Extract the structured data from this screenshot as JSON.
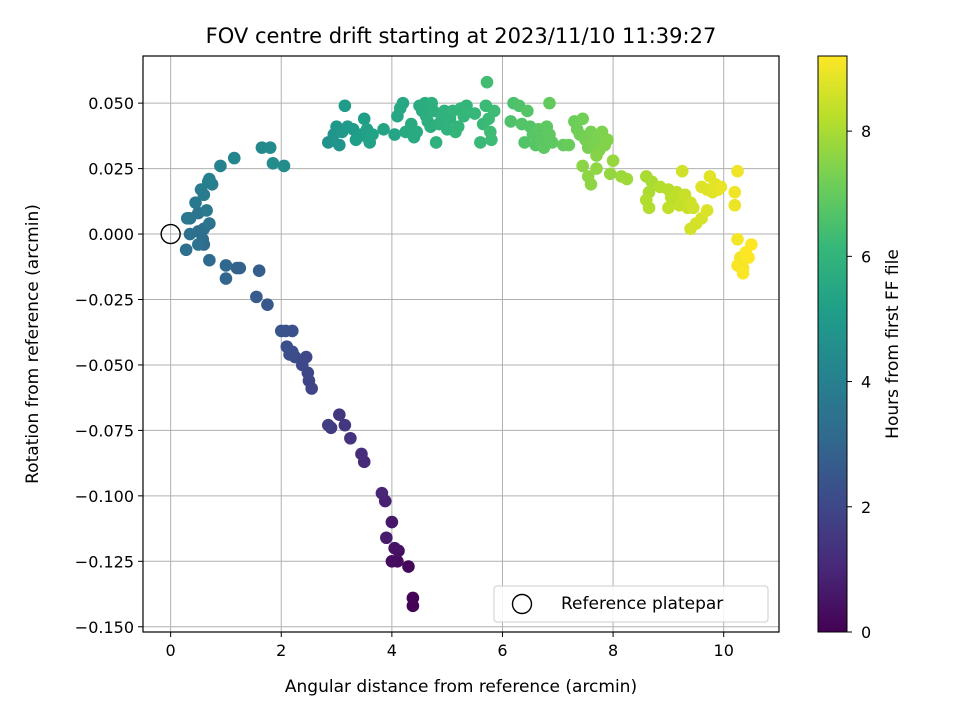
{
  "chart_data": {
    "type": "scatter",
    "title": "FOV centre drift starting at 2023/11/10 11:39:27",
    "xlabel": "Angular distance from reference (arcmin)",
    "ylabel": "Rotation from reference (arcmin)",
    "xlim": [
      -0.5,
      11.0
    ],
    "ylim": [
      -0.152,
      0.068
    ],
    "xticks": [
      0,
      2,
      4,
      6,
      8,
      10
    ],
    "xtick_labels": [
      "0",
      "2",
      "4",
      "6",
      "8",
      "10"
    ],
    "yticks": [
      -0.15,
      -0.125,
      -0.1,
      -0.075,
      -0.05,
      -0.025,
      0.0,
      0.025,
      0.05
    ],
    "ytick_labels": [
      "−0.150",
      "−0.125",
      "−0.100",
      "−0.075",
      "−0.050",
      "−0.025",
      "0.000",
      "0.025",
      "0.050"
    ],
    "grid": true,
    "legend": {
      "placement": "lower-right",
      "entries": [
        "Reference platepar"
      ]
    },
    "reference_point": {
      "name": "Reference platepar",
      "x": 0,
      "y": 0
    },
    "colorbar": {
      "label": "Hours from first FF file",
      "colormap": "viridis",
      "range": [
        0,
        9.2
      ],
      "ticks": [
        0,
        2,
        4,
        6,
        8
      ],
      "tick_labels": [
        "0",
        "2",
        "4",
        "6",
        "8"
      ]
    },
    "series": [
      {
        "values_format": "[x, y, hours]",
        "points": [
          [
            4.38,
            -0.142,
            0.05
          ],
          [
            4.38,
            -0.139,
            0.1
          ],
          [
            4.3,
            -0.127,
            0.2
          ],
          [
            4.1,
            -0.125,
            0.25
          ],
          [
            4.0,
            -0.125,
            0.3
          ],
          [
            4.12,
            -0.121,
            0.4
          ],
          [
            4.05,
            -0.12,
            0.45
          ],
          [
            4.0,
            -0.11,
            0.6
          ],
          [
            3.9,
            -0.116,
            0.7
          ],
          [
            3.88,
            -0.102,
            0.85
          ],
          [
            3.82,
            -0.099,
            0.95
          ],
          [
            3.5,
            -0.087,
            1.1
          ],
          [
            3.45,
            -0.084,
            1.2
          ],
          [
            3.25,
            -0.078,
            1.35
          ],
          [
            3.15,
            -0.073,
            1.45
          ],
          [
            3.05,
            -0.069,
            1.5
          ],
          [
            2.9,
            -0.074,
            1.6
          ],
          [
            2.85,
            -0.073,
            1.7
          ],
          [
            2.55,
            -0.059,
            1.85
          ],
          [
            2.5,
            -0.056,
            1.9
          ],
          [
            2.48,
            -0.053,
            1.95
          ],
          [
            2.45,
            -0.047,
            2.0
          ],
          [
            2.38,
            -0.05,
            2.05
          ],
          [
            2.25,
            -0.047,
            2.1
          ],
          [
            2.2,
            -0.045,
            2.15
          ],
          [
            2.15,
            -0.046,
            2.2
          ],
          [
            2.1,
            -0.043,
            2.25
          ],
          [
            2.2,
            -0.037,
            2.3
          ],
          [
            2.08,
            -0.037,
            2.35
          ],
          [
            2.0,
            -0.037,
            2.4
          ],
          [
            1.75,
            -0.027,
            2.55
          ],
          [
            1.55,
            -0.024,
            2.65
          ],
          [
            1.6,
            -0.014,
            2.75
          ],
          [
            1.2,
            -0.013,
            2.85
          ],
          [
            1.25,
            -0.013,
            2.9
          ],
          [
            1.0,
            -0.017,
            3.0
          ],
          [
            1.0,
            -0.012,
            3.05
          ],
          [
            0.7,
            -0.01,
            3.15
          ],
          [
            0.6,
            -0.004,
            3.2
          ],
          [
            0.58,
            -0.002,
            3.25
          ],
          [
            0.6,
            0.002,
            3.3
          ],
          [
            0.5,
            0.001,
            3.35
          ],
          [
            0.28,
            -0.006,
            3.35
          ],
          [
            0.35,
            0.0,
            3.4
          ],
          [
            0.5,
            -0.004,
            3.45
          ],
          [
            0.5,
            0.008,
            3.5
          ],
          [
            0.7,
            0.004,
            3.55
          ],
          [
            0.35,
            0.006,
            3.6
          ],
          [
            0.3,
            0.006,
            3.65
          ],
          [
            0.45,
            0.012,
            3.7
          ],
          [
            0.65,
            0.009,
            3.75
          ],
          [
            0.6,
            0.015,
            3.8
          ],
          [
            0.55,
            0.017,
            3.85
          ],
          [
            0.75,
            0.019,
            3.9
          ],
          [
            0.68,
            0.02,
            3.95
          ],
          [
            0.7,
            0.021,
            4.0
          ],
          [
            0.9,
            0.026,
            4.1
          ],
          [
            1.15,
            0.029,
            4.2
          ],
          [
            1.65,
            0.033,
            4.35
          ],
          [
            1.8,
            0.033,
            4.4
          ],
          [
            1.85,
            0.027,
            4.45
          ],
          [
            2.05,
            0.026,
            4.5
          ],
          [
            2.85,
            0.035,
            4.7
          ],
          [
            2.95,
            0.038,
            4.75
          ],
          [
            3.05,
            0.034,
            4.8
          ],
          [
            3.0,
            0.041,
            4.85
          ],
          [
            3.1,
            0.039,
            4.9
          ],
          [
            3.2,
            0.041,
            4.95
          ],
          [
            3.15,
            0.049,
            5.0
          ],
          [
            3.3,
            0.04,
            5.05
          ],
          [
            3.35,
            0.036,
            5.1
          ],
          [
            3.45,
            0.038,
            5.1
          ],
          [
            3.5,
            0.044,
            5.15
          ],
          [
            3.55,
            0.037,
            5.2
          ],
          [
            3.6,
            0.035,
            5.25
          ],
          [
            3.55,
            0.04,
            5.25
          ],
          [
            3.65,
            0.038,
            5.3
          ],
          [
            3.85,
            0.04,
            5.35
          ],
          [
            4.05,
            0.038,
            5.4
          ],
          [
            4.1,
            0.045,
            5.45
          ],
          [
            4.15,
            0.048,
            5.5
          ],
          [
            4.2,
            0.05,
            5.5
          ],
          [
            4.25,
            0.039,
            5.55
          ],
          [
            4.35,
            0.042,
            5.55
          ],
          [
            4.4,
            0.037,
            5.6
          ],
          [
            4.45,
            0.039,
            5.6
          ],
          [
            4.5,
            0.049,
            5.65
          ],
          [
            4.55,
            0.047,
            5.65
          ],
          [
            4.6,
            0.05,
            5.7
          ],
          [
            4.62,
            0.045,
            5.7
          ],
          [
            4.65,
            0.043,
            5.75
          ],
          [
            4.7,
            0.041,
            5.75
          ],
          [
            4.72,
            0.05,
            5.8
          ],
          [
            4.75,
            0.047,
            5.8
          ],
          [
            4.8,
            0.035,
            5.85
          ],
          [
            4.85,
            0.042,
            5.85
          ],
          [
            4.9,
            0.045,
            5.9
          ],
          [
            4.95,
            0.047,
            5.9
          ],
          [
            5.0,
            0.04,
            5.95
          ],
          [
            5.05,
            0.044,
            5.95
          ],
          [
            5.1,
            0.047,
            6.0
          ],
          [
            5.15,
            0.039,
            6.0
          ],
          [
            5.2,
            0.041,
            6.05
          ],
          [
            5.25,
            0.048,
            6.05
          ],
          [
            5.3,
            0.045,
            6.1
          ],
          [
            5.35,
            0.049,
            6.1
          ],
          [
            5.5,
            0.046,
            6.15
          ],
          [
            5.6,
            0.035,
            6.2
          ],
          [
            5.65,
            0.042,
            6.2
          ],
          [
            5.7,
            0.049,
            6.25
          ],
          [
            5.75,
            0.044,
            6.25
          ],
          [
            5.78,
            0.039,
            6.3
          ],
          [
            5.8,
            0.036,
            6.3
          ],
          [
            5.85,
            0.047,
            6.3
          ],
          [
            5.72,
            0.058,
            6.35
          ],
          [
            6.2,
            0.05,
            6.55
          ],
          [
            6.15,
            0.043,
            6.6
          ],
          [
            6.3,
            0.049,
            6.6
          ],
          [
            6.35,
            0.042,
            6.65
          ],
          [
            6.4,
            0.035,
            6.65
          ],
          [
            6.45,
            0.047,
            6.7
          ],
          [
            6.5,
            0.041,
            6.7
          ],
          [
            6.55,
            0.038,
            6.75
          ],
          [
            6.6,
            0.034,
            6.75
          ],
          [
            6.65,
            0.04,
            6.8
          ],
          [
            6.7,
            0.036,
            6.8
          ],
          [
            6.75,
            0.033,
            6.85
          ],
          [
            6.8,
            0.041,
            6.85
          ],
          [
            6.85,
            0.038,
            6.9
          ],
          [
            6.9,
            0.035,
            6.9
          ],
          [
            6.85,
            0.05,
            6.95
          ],
          [
            7.1,
            0.034,
            7.0
          ],
          [
            7.2,
            0.034,
            7.05
          ],
          [
            7.3,
            0.043,
            7.1
          ],
          [
            7.35,
            0.04,
            7.15
          ],
          [
            7.4,
            0.038,
            7.2
          ],
          [
            7.45,
            0.044,
            7.2
          ],
          [
            7.5,
            0.036,
            7.25
          ],
          [
            7.55,
            0.033,
            7.3
          ],
          [
            7.6,
            0.039,
            7.3
          ],
          [
            7.65,
            0.035,
            7.35
          ],
          [
            7.7,
            0.037,
            7.35
          ],
          [
            7.75,
            0.032,
            7.4
          ],
          [
            7.8,
            0.039,
            7.4
          ],
          [
            7.85,
            0.034,
            7.45
          ],
          [
            7.9,
            0.036,
            7.45
          ],
          [
            7.7,
            0.03,
            7.5
          ],
          [
            7.45,
            0.026,
            7.55
          ],
          [
            7.55,
            0.022,
            7.6
          ],
          [
            7.6,
            0.019,
            7.6
          ],
          [
            7.7,
            0.025,
            7.65
          ],
          [
            7.95,
            0.023,
            7.7
          ],
          [
            8.0,
            0.028,
            7.75
          ],
          [
            8.15,
            0.022,
            7.8
          ],
          [
            8.25,
            0.021,
            7.85
          ],
          [
            8.6,
            0.022,
            8.0
          ],
          [
            8.7,
            0.02,
            8.0
          ],
          [
            8.65,
            0.016,
            8.05
          ],
          [
            8.6,
            0.013,
            8.1
          ],
          [
            8.65,
            0.01,
            8.1
          ],
          [
            8.85,
            0.018,
            8.15
          ],
          [
            9.0,
            0.017,
            8.2
          ],
          [
            9.05,
            0.014,
            8.25
          ],
          [
            9.1,
            0.013,
            8.25
          ],
          [
            9.15,
            0.016,
            8.3
          ],
          [
            9.2,
            0.014,
            8.3
          ],
          [
            9.0,
            0.01,
            8.35
          ],
          [
            9.2,
            0.011,
            8.4
          ],
          [
            9.25,
            0.012,
            8.4
          ],
          [
            9.3,
            0.015,
            8.45
          ],
          [
            9.35,
            0.01,
            8.45
          ],
          [
            9.4,
            0.012,
            8.5
          ],
          [
            9.45,
            0.01,
            8.55
          ],
          [
            9.25,
            0.024,
            8.55
          ],
          [
            9.4,
            0.002,
            8.6
          ],
          [
            9.5,
            0.004,
            8.6
          ],
          [
            9.6,
            0.006,
            8.65
          ],
          [
            9.7,
            0.009,
            8.7
          ],
          [
            9.6,
            0.018,
            8.75
          ],
          [
            9.7,
            0.017,
            8.75
          ],
          [
            9.75,
            0.022,
            8.8
          ],
          [
            9.8,
            0.016,
            8.8
          ],
          [
            9.85,
            0.019,
            8.85
          ],
          [
            9.9,
            0.017,
            8.85
          ],
          [
            9.95,
            0.018,
            8.9
          ],
          [
            10.2,
            0.011,
            8.95
          ],
          [
            10.2,
            0.016,
            9.0
          ],
          [
            10.25,
            0.024,
            9.0
          ],
          [
            10.25,
            -0.002,
            9.05
          ],
          [
            10.3,
            -0.009,
            9.05
          ],
          [
            10.25,
            -0.012,
            9.1
          ],
          [
            10.35,
            -0.013,
            9.1
          ],
          [
            10.35,
            -0.015,
            9.15
          ],
          [
            10.4,
            -0.007,
            9.15
          ],
          [
            10.45,
            -0.009,
            9.2
          ],
          [
            10.5,
            -0.004,
            9.2
          ]
        ]
      }
    ]
  }
}
